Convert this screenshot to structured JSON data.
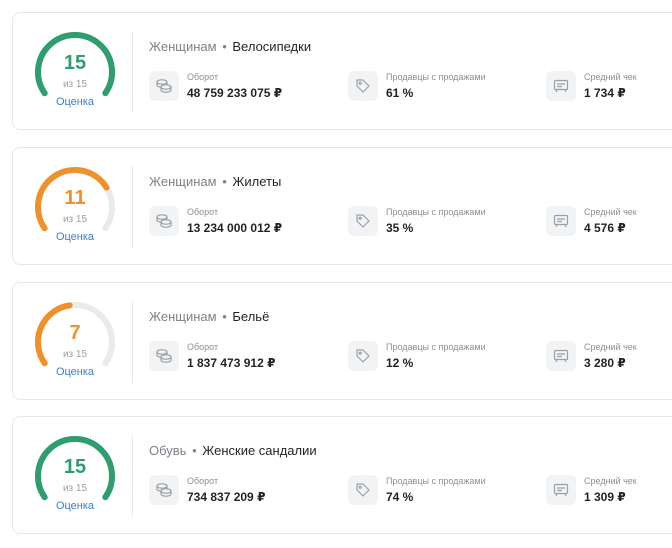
{
  "colors": {
    "green": "#2e9e6e",
    "orange": "#f0902a",
    "track": "#e9eaec",
    "link": "#3d7ecf"
  },
  "cards": [
    {
      "score": "15",
      "score_value": 15,
      "score_max": 15,
      "score_color": "#2e9e6e",
      "of_label": "из 15",
      "rating_label": "Оценка",
      "category": "Женщинам",
      "subcategory": "Велосипедки",
      "metrics": [
        {
          "icon": "coins-icon",
          "label": "Оборот",
          "value": "48 759 233 075 ₽"
        },
        {
          "icon": "tag-icon",
          "label": "Продавцы с продажами",
          "value": "61 %"
        },
        {
          "icon": "receipt-icon",
          "label": "Средний чек",
          "value": "1 734 ₽"
        }
      ]
    },
    {
      "score": "11",
      "score_value": 11,
      "score_max": 15,
      "score_color": "#f0902a",
      "of_label": "из 15",
      "rating_label": "Оценка",
      "category": "Женщинам",
      "subcategory": "Жилеты",
      "metrics": [
        {
          "icon": "coins-icon",
          "label": "Оборот",
          "value": "13 234 000 012 ₽"
        },
        {
          "icon": "tag-icon",
          "label": "Продавцы с продажами",
          "value": "35 %"
        },
        {
          "icon": "receipt-icon",
          "label": "Средний чек",
          "value": "4 576 ₽"
        }
      ]
    },
    {
      "score": "7",
      "score_value": 7,
      "score_max": 15,
      "score_color": "#f0902a",
      "of_label": "из 15",
      "rating_label": "Оценка",
      "category": "Женщинам",
      "subcategory": "Бельё",
      "metrics": [
        {
          "icon": "coins-icon",
          "label": "Оборот",
          "value": "1 837 473 912 ₽"
        },
        {
          "icon": "tag-icon",
          "label": "Продавцы с продажами",
          "value": "12 %"
        },
        {
          "icon": "receipt-icon",
          "label": "Средний чек",
          "value": "3 280 ₽"
        }
      ]
    },
    {
      "score": "15",
      "score_value": 15,
      "score_max": 15,
      "score_color": "#2e9e6e",
      "of_label": "из 15",
      "rating_label": "Оценка",
      "category": "Обувь",
      "subcategory": "Женские сандалии",
      "metrics": [
        {
          "icon": "coins-icon",
          "label": "Оборот",
          "value": "734 837 209 ₽"
        },
        {
          "icon": "tag-icon",
          "label": "Продавцы с продажами",
          "value": "74 %"
        },
        {
          "icon": "receipt-icon",
          "label": "Средний чек",
          "value": "1 309 ₽"
        }
      ]
    }
  ]
}
